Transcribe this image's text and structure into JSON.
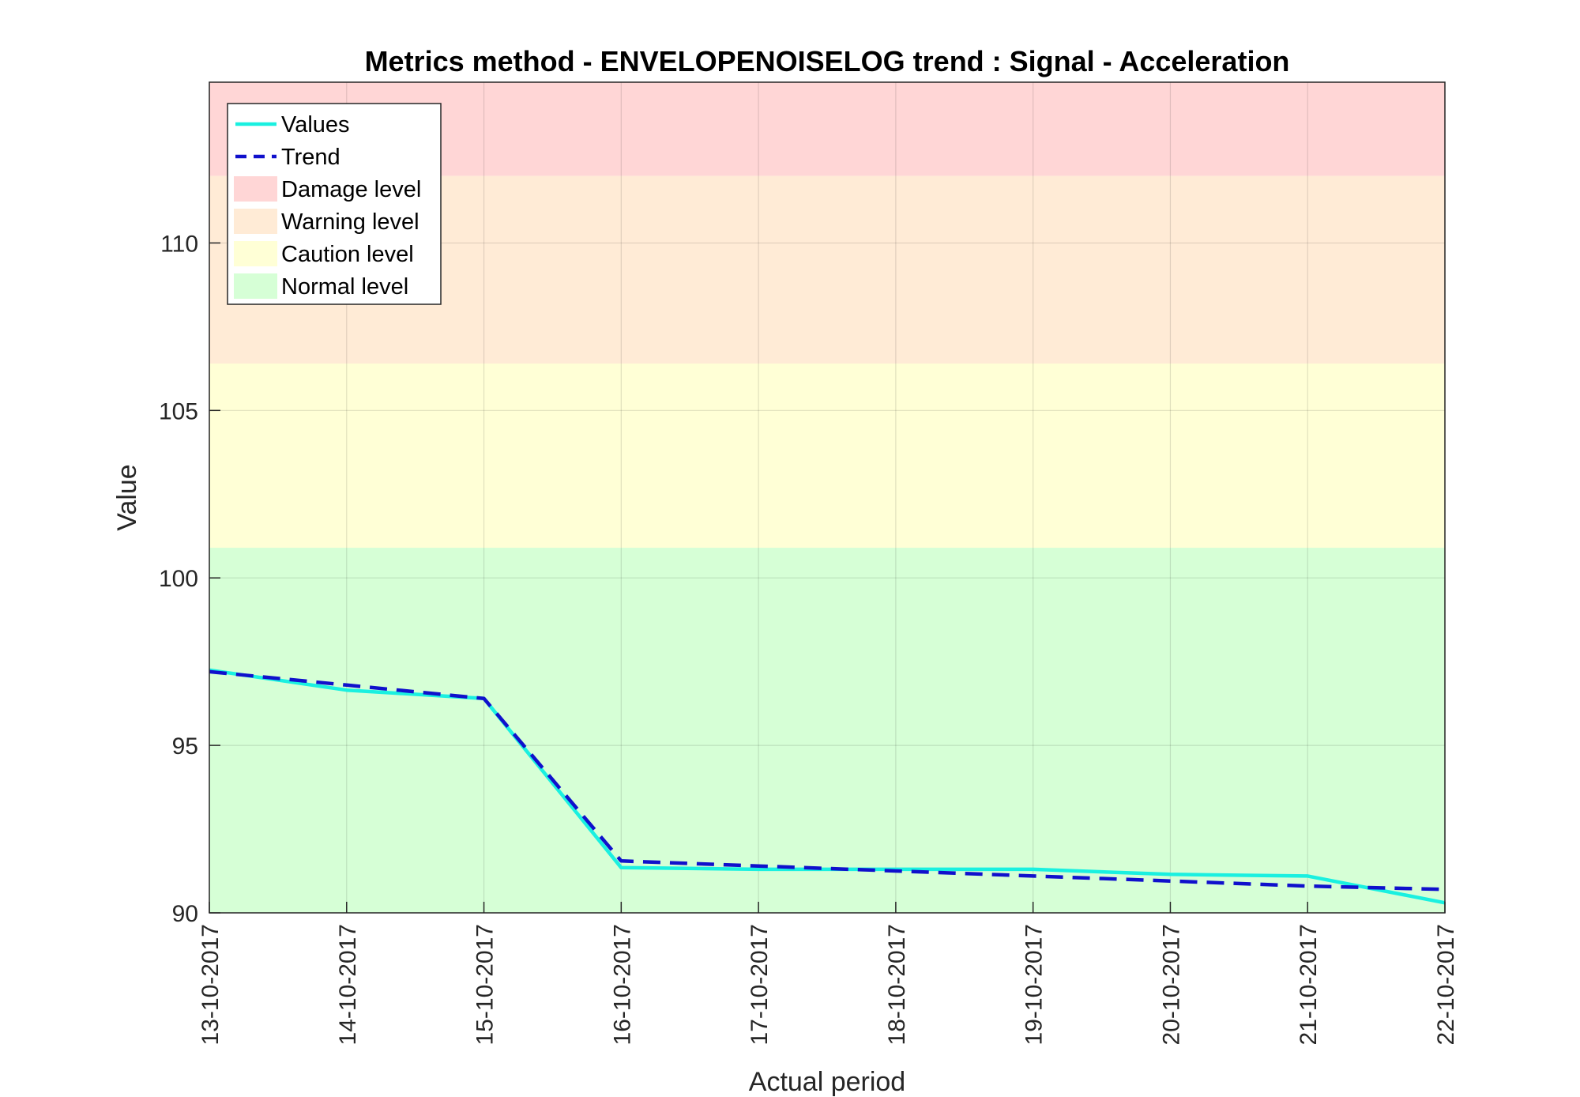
{
  "chart_data": {
    "type": "line",
    "title": "Metrics method - ENVELOPENOISELOG trend : Signal - Acceleration",
    "xlabel": "Actual period",
    "ylabel": "Value",
    "categories": [
      "13-10-2017",
      "14-10-2017",
      "15-10-2017",
      "16-10-2017",
      "17-10-2017",
      "18-10-2017",
      "19-10-2017",
      "20-10-2017",
      "21-10-2017",
      "22-10-2017"
    ],
    "ylim": [
      90,
      114.8
    ],
    "yticks": [
      90,
      95,
      100,
      105,
      110
    ],
    "grid": true,
    "legend_position": "top-left",
    "series": [
      {
        "name": "Values",
        "style": "solid",
        "color": "#1AF0E0",
        "values": [
          97.25,
          96.65,
          96.4,
          91.35,
          91.3,
          91.3,
          91.3,
          91.15,
          91.1,
          90.3
        ]
      },
      {
        "name": "Trend",
        "style": "dashed",
        "color": "#1010CC",
        "values": [
          97.2,
          96.8,
          96.4,
          91.55,
          91.4,
          91.25,
          91.1,
          90.95,
          90.8,
          90.7
        ]
      }
    ],
    "bands": [
      {
        "name": "Damage level",
        "from": 112.0,
        "to": 114.8,
        "color": "#FFD6D6"
      },
      {
        "name": "Warning level",
        "from": 106.4,
        "to": 112.0,
        "color": "#FFEBD6"
      },
      {
        "name": "Caution level",
        "from": 100.9,
        "to": 106.4,
        "color": "#FFFFD6"
      },
      {
        "name": "Normal level",
        "from": 90,
        "to": 100.9,
        "color": "#D6FFD6"
      }
    ]
  }
}
